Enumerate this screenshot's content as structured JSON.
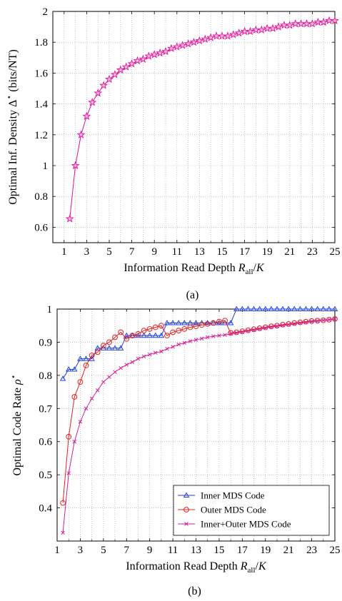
{
  "chart_data": [
    {
      "type": "line",
      "caption": "(a)",
      "xlabel": "Information Read Depth R_all/K",
      "ylabel": "Optimal Inf. Density Δ* (bits/NT)",
      "xlim": [
        0,
        25
      ],
      "ylim": [
        0.5,
        2.0
      ],
      "xticks": [
        1,
        3,
        5,
        7,
        9,
        11,
        13,
        15,
        17,
        19,
        21,
        23,
        25
      ],
      "xtick_labels": [
        "1",
        "3",
        "5",
        "7",
        "9",
        "11",
        "13",
        "15",
        "17",
        "19",
        "21",
        "23",
        "25"
      ],
      "xticks_minor": [
        2,
        4,
        6,
        8,
        10,
        12,
        14,
        16,
        18,
        20,
        22,
        24
      ],
      "yticks": [
        0.6,
        0.8,
        1.0,
        1.2,
        1.4,
        1.6,
        1.8,
        2.0
      ],
      "ytick_labels": [
        "0.6",
        "0.8",
        "1",
        "1.2",
        "1.4",
        "1.6",
        "1.8",
        "2"
      ],
      "grid": true,
      "series": [
        {
          "marker": "star",
          "color": "#e0109a",
          "x": [
            1.5,
            2,
            2.5,
            3,
            3.5,
            4,
            4.5,
            5,
            5.5,
            6,
            6.5,
            7,
            7.5,
            8,
            8.5,
            9,
            9.5,
            10,
            10.5,
            11,
            11.5,
            12,
            12.5,
            13,
            13.5,
            14,
            14.5,
            15,
            15.5,
            16,
            16.5,
            17,
            17.5,
            18,
            18.5,
            19,
            19.5,
            20,
            20.5,
            21,
            21.5,
            22,
            22.5,
            23,
            23.5,
            24,
            24.5,
            25
          ],
          "y": [
            0.655,
            1.0,
            1.2,
            1.32,
            1.41,
            1.47,
            1.52,
            1.56,
            1.59,
            1.62,
            1.64,
            1.66,
            1.68,
            1.69,
            1.71,
            1.72,
            1.73,
            1.74,
            1.76,
            1.77,
            1.78,
            1.79,
            1.8,
            1.81,
            1.82,
            1.83,
            1.84,
            1.84,
            1.84,
            1.85,
            1.86,
            1.87,
            1.87,
            1.88,
            1.88,
            1.89,
            1.89,
            1.9,
            1.91,
            1.91,
            1.92,
            1.92,
            1.92,
            1.92,
            1.93,
            1.93,
            1.94,
            1.94
          ]
        }
      ]
    },
    {
      "type": "line",
      "caption": "(b)",
      "xlabel": "Information Read Depth R_all/K",
      "ylabel": "Optimal Code Rate ρ*",
      "xlim": [
        1,
        25
      ],
      "ylim": [
        0.3,
        1.0
      ],
      "xticks": [
        1,
        3,
        5,
        7,
        9,
        11,
        13,
        15,
        17,
        19,
        21,
        23,
        25
      ],
      "xtick_labels": [
        "1",
        "3",
        "5",
        "7",
        "9",
        "11",
        "13",
        "15",
        "17",
        "19",
        "21",
        "23",
        "25"
      ],
      "xticks_minor": [
        2,
        4,
        6,
        8,
        10,
        12,
        14,
        16,
        18,
        20,
        22,
        24
      ],
      "yticks": [
        0.4,
        0.5,
        0.6,
        0.7,
        0.8,
        0.9,
        1.0
      ],
      "ytick_labels": [
        "0.4",
        "0.5",
        "0.6",
        "0.7",
        "0.8",
        "0.9",
        "1"
      ],
      "grid": true,
      "legend_placement": "bottom-right",
      "series": [
        {
          "name": "Inner MDS Code",
          "marker": "triangle",
          "color": "#1f3fe0",
          "x": [
            1.5,
            2,
            2.5,
            3,
            3.5,
            4,
            4.5,
            5,
            5.5,
            6,
            6.5,
            7,
            7.5,
            8,
            8.5,
            9,
            9.5,
            10,
            10.5,
            11,
            11.5,
            12,
            12.5,
            13,
            13.5,
            14,
            14.5,
            15,
            15.5,
            16,
            16.5,
            17,
            17.5,
            18,
            18.5,
            19,
            19.5,
            20,
            20.5,
            21,
            21.5,
            22,
            22.5,
            23,
            23.5,
            24,
            24.5,
            25
          ],
          "y": [
            0.79,
            0.818,
            0.818,
            0.85,
            0.85,
            0.85,
            0.882,
            0.882,
            0.882,
            0.882,
            0.882,
            0.92,
            0.92,
            0.92,
            0.92,
            0.92,
            0.92,
            0.92,
            0.958,
            0.958,
            0.958,
            0.958,
            0.958,
            0.958,
            0.958,
            0.958,
            0.958,
            0.958,
            0.958,
            0.958,
            1.0,
            1.0,
            1.0,
            1.0,
            1.0,
            1.0,
            1.0,
            1.0,
            1.0,
            1.0,
            1.0,
            1.0,
            1.0,
            1.0,
            1.0,
            1.0,
            1.0,
            1.0
          ]
        },
        {
          "name": "Outer MDS Code",
          "marker": "circle",
          "color": "#e02020",
          "x": [
            1.5,
            2,
            2.5,
            3,
            3.5,
            4,
            4.5,
            5,
            5.5,
            6,
            6.5,
            7,
            7.5,
            8,
            8.5,
            9,
            9.5,
            10,
            10.5,
            11,
            11.5,
            12,
            12.5,
            13,
            13.5,
            14,
            14.5,
            15,
            15.5,
            16,
            16.5,
            17,
            17.5,
            18,
            18.5,
            19,
            19.5,
            20,
            20.5,
            21,
            21.5,
            22,
            22.5,
            23,
            23.5,
            24,
            24.5,
            25
          ],
          "y": [
            0.415,
            0.615,
            0.735,
            0.78,
            0.83,
            0.86,
            0.87,
            0.89,
            0.9,
            0.915,
            0.93,
            0.91,
            0.92,
            0.925,
            0.935,
            0.94,
            0.945,
            0.95,
            0.92,
            0.93,
            0.935,
            0.94,
            0.945,
            0.948,
            0.952,
            0.955,
            0.958,
            0.962,
            0.965,
            0.928,
            0.93,
            0.933,
            0.936,
            0.939,
            0.942,
            0.945,
            0.948,
            0.95,
            0.953,
            0.955,
            0.958,
            0.96,
            0.962,
            0.964,
            0.965,
            0.966,
            0.968,
            0.97
          ]
        },
        {
          "name": "Inner+Outer MDS Code",
          "marker": "x",
          "color": "#d0209a",
          "x": [
            1.5,
            2,
            2.5,
            3,
            3.5,
            4,
            4.5,
            5,
            5.5,
            6,
            6.5,
            7,
            7.5,
            8,
            8.5,
            9,
            9.5,
            10,
            10.5,
            11,
            11.5,
            12,
            12.5,
            13,
            13.5,
            14,
            14.5,
            15,
            15.5,
            16,
            16.5,
            17,
            17.5,
            18,
            18.5,
            19,
            19.5,
            20,
            20.5,
            21,
            21.5,
            22,
            22.5,
            23,
            23.5,
            24,
            24.5,
            25
          ],
          "y": [
            0.325,
            0.505,
            0.6,
            0.66,
            0.7,
            0.73,
            0.755,
            0.78,
            0.795,
            0.81,
            0.822,
            0.832,
            0.84,
            0.85,
            0.857,
            0.863,
            0.868,
            0.872,
            0.88,
            0.886,
            0.893,
            0.898,
            0.903,
            0.907,
            0.911,
            0.915,
            0.918,
            0.92,
            0.922,
            0.925,
            0.928,
            0.931,
            0.934,
            0.937,
            0.94,
            0.943,
            0.946,
            0.948,
            0.951,
            0.953,
            0.955,
            0.958,
            0.96,
            0.962,
            0.964,
            0.966,
            0.968,
            0.97
          ]
        }
      ]
    }
  ]
}
